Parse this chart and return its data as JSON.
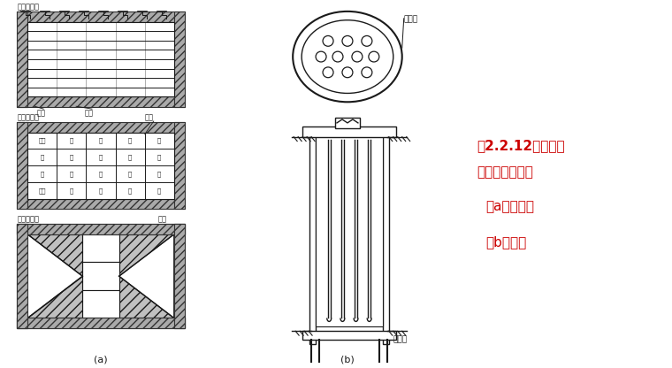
{
  "bg_color": "#ffffff",
  "line_color": "#1a1a1a",
  "text_color_black": "#1a1a1a",
  "text_color_red": "#cc0000",
  "title_line1": "图2.2.12部分地下",
  "title_line2": "连续墙基础类型",
  "subtitle_a": "（a）矩形；",
  "subtitle_b": "（b）圆形",
  "label_a": "(a)",
  "label_b": "(b)",
  "cell_labels_mid": [
    [
      "砾土",
      "砂",
      "砂",
      "砂",
      "砂"
    ],
    [
      "砂",
      "砂",
      "砂",
      "砂",
      "水"
    ],
    [
      "砂",
      "砂",
      "砂",
      "砂",
      "水"
    ],
    [
      "砾土",
      "砂",
      "砂",
      "砂",
      "砂"
    ]
  ]
}
